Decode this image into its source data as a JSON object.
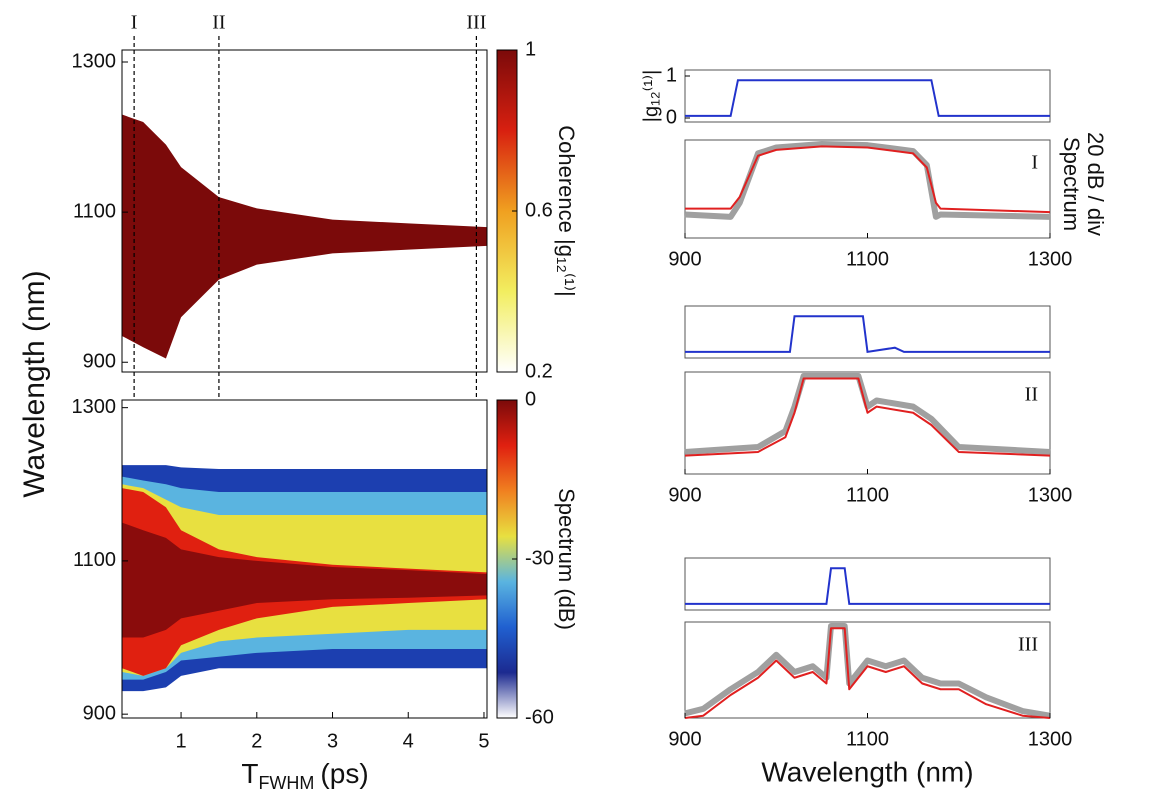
{
  "chart_data": [
    {
      "type": "band-map",
      "ylabel": "Wavelength (nm)",
      "xlim": [
        0.22,
        5.04
      ],
      "ylim": [
        887,
        1316
      ],
      "yticks": [
        900,
        1100,
        1300
      ],
      "x": [
        0.22,
        0.5,
        0.8,
        1.0,
        1.5,
        2,
        3,
        4,
        5.04
      ],
      "bands": [
        {
          "color": "#7b0a0a",
          "upper": [
            1230,
            1220,
            1190,
            1160,
            1120,
            1105,
            1090,
            1085,
            1080
          ],
          "lower": [
            935,
            920,
            905,
            960,
            1010,
            1030,
            1045,
            1050,
            1055
          ]
        }
      ],
      "markers": [
        {
          "value": 0.38,
          "label": "I"
        },
        {
          "value": 1.5,
          "label": "II"
        },
        {
          "value": 4.9,
          "label": "III"
        }
      ],
      "colorbar": {
        "label": "Coherence |g₁₂⁽¹⁾|",
        "lim": [
          0.2,
          1
        ],
        "ticks": [
          0.2,
          0.6,
          1
        ],
        "colors": [
          "#ffffff",
          "#f2ee60",
          "#f0a020",
          "#d82010",
          "#7b0a0a"
        ]
      }
    },
    {
      "type": "band-map",
      "xlabel": "T",
      "xlabel_sub": "FWHM",
      "xlabel_unit": "(ps)",
      "xlim": [
        0.22,
        5.04
      ],
      "ylim": [
        895,
        1310
      ],
      "yticks": [
        900,
        1100,
        1300
      ],
      "xticks": [
        1,
        2,
        3,
        4,
        5
      ],
      "x": [
        0.22,
        0.5,
        0.8,
        1.0,
        1.5,
        2,
        3,
        4,
        5.04
      ],
      "bands": [
        {
          "color": "#1c3fb0",
          "upper": [
            1225,
            1225,
            1225,
            1222,
            1220,
            1220,
            1220,
            1220,
            1220
          ],
          "lower": [
            930,
            930,
            935,
            950,
            960,
            960,
            960,
            960,
            960
          ]
        },
        {
          "color": "#5ab4e0",
          "upper": [
            1210,
            1205,
            1200,
            1195,
            1190,
            1190,
            1190,
            1190,
            1190
          ],
          "lower": [
            945,
            945,
            955,
            970,
            975,
            980,
            985,
            985,
            985
          ]
        },
        {
          "color": "#e8e040",
          "upper": [
            1200,
            1195,
            1180,
            1170,
            1160,
            1160,
            1160,
            1160,
            1160
          ],
          "lower": [
            955,
            950,
            960,
            980,
            995,
            1000,
            1005,
            1010,
            1010
          ]
        },
        {
          "color": "#e02010",
          "upper": [
            1195,
            1190,
            1170,
            1140,
            1115,
            1105,
            1095,
            1090,
            1085
          ],
          "lower": [
            960,
            950,
            960,
            990,
            1010,
            1025,
            1040,
            1045,
            1050
          ]
        },
        {
          "color": "#8a0c0c",
          "upper": [
            1150,
            1140,
            1130,
            1115,
            1105,
            1100,
            1092,
            1088,
            1083
          ],
          "lower": [
            1000,
            1000,
            1010,
            1025,
            1035,
            1045,
            1050,
            1052,
            1055
          ]
        }
      ],
      "colorbar": {
        "label": "Spectrum (dB)",
        "lim": [
          -60,
          0
        ],
        "ticks": [
          -60,
          -30,
          0
        ],
        "colors": [
          "#ffffff",
          "#1c2a90",
          "#2060d0",
          "#5ab4e0",
          "#e8e040",
          "#f08020",
          "#e02010",
          "#7b0a0a"
        ]
      }
    },
    {
      "type": "spectrum-pair",
      "label": "I",
      "xlim": [
        900,
        1300
      ],
      "xticks": [
        900,
        1100,
        1300
      ],
      "coherence": {
        "ylabel": "|g₁₂⁽¹⁾|",
        "ylim": [
          0,
          1
        ],
        "yticks": [
          0,
          1
        ],
        "color": "#2233cc",
        "x": [
          900,
          950,
          958,
          1170,
          1178,
          1300
        ],
        "values": [
          0.05,
          0.05,
          0.9,
          0.9,
          0.05,
          0.05
        ]
      },
      "spectrum": {
        "ylabel": "Spectrum",
        "ylabel2": "20 dB / div",
        "ylim": [
          -80,
          0
        ],
        "x": [
          900,
          950,
          960,
          980,
          1000,
          1050,
          1100,
          1150,
          1165,
          1175,
          1180,
          1300
        ],
        "series": [
          {
            "color": "#a0a0a0",
            "values": [
              -60,
              -62,
              -50,
              -8,
              -3,
              0,
              -1,
              -6,
              -18,
              -62,
              -60,
              -62
            ]
          },
          {
            "color": "#e02020",
            "values": [
              -55,
              -55,
              -45,
              -10,
              -5,
              -2,
              -3,
              -8,
              -20,
              -50,
              -55,
              -58
            ]
          }
        ]
      }
    },
    {
      "type": "spectrum-pair",
      "label": "II",
      "xlim": [
        900,
        1300
      ],
      "xticks": [
        900,
        1100,
        1300
      ],
      "coherence": {
        "ylim": [
          0,
          1
        ],
        "color": "#2233cc",
        "x": [
          900,
          1015,
          1020,
          1095,
          1100,
          1130,
          1140,
          1300
        ],
        "values": [
          0.05,
          0.05,
          0.9,
          0.9,
          0.05,
          0.15,
          0.05,
          0.05
        ]
      },
      "spectrum": {
        "ylim": [
          -80,
          0
        ],
        "x": [
          900,
          980,
          1010,
          1020,
          1030,
          1090,
          1100,
          1110,
          1150,
          1170,
          1200,
          1300
        ],
        "series": [
          {
            "color": "#a0a0a0",
            "values": [
              -62,
              -58,
              -45,
              -25,
              0,
              0,
              -25,
              -20,
              -25,
              -35,
              -58,
              -62
            ]
          },
          {
            "color": "#e02020",
            "values": [
              -65,
              -62,
              -50,
              -30,
              -2,
              -2,
              -30,
              -25,
              -30,
              -40,
              -62,
              -65
            ]
          }
        ]
      }
    },
    {
      "type": "spectrum-pair",
      "label": "III",
      "xlim": [
        900,
        1300
      ],
      "xticks": [
        900,
        1100,
        1300
      ],
      "xlabel": "Wavelength (nm)",
      "coherence": {
        "ylim": [
          0,
          1
        ],
        "color": "#2233cc",
        "x": [
          900,
          1055,
          1060,
          1075,
          1080,
          1300
        ],
        "values": [
          0.05,
          0.05,
          0.9,
          0.9,
          0.05,
          0.05
        ]
      },
      "spectrum": {
        "ylim": [
          -80,
          0
        ],
        "x": [
          900,
          920,
          950,
          980,
          1000,
          1020,
          1040,
          1055,
          1060,
          1075,
          1080,
          1100,
          1120,
          1140,
          1160,
          1180,
          1200,
          1230,
          1270,
          1300
        ],
        "series": [
          {
            "color": "#a0a0a0",
            "values": [
              -76,
              -72,
              -55,
              -40,
              -25,
              -40,
              -35,
              -45,
              0,
              0,
              -50,
              -30,
              -35,
              -30,
              -45,
              -50,
              -50,
              -62,
              -74,
              -78
            ]
          },
          {
            "color": "#e02020",
            "values": [
              -80,
              -78,
              -60,
              -45,
              -30,
              -45,
              -40,
              -50,
              -2,
              -2,
              -55,
              -35,
              -40,
              -35,
              -50,
              -55,
              -55,
              -68,
              -78,
              -80
            ]
          }
        ]
      }
    }
  ]
}
